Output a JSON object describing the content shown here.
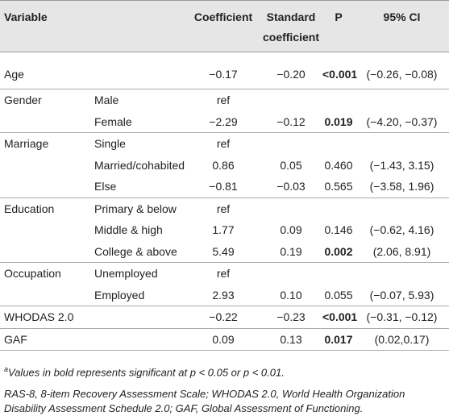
{
  "table": {
    "header": [
      "Variable",
      null,
      "Coefficient",
      "Standard coefficient",
      "P",
      "95% CI"
    ],
    "rows": [
      {
        "cells": [
          "Age",
          null,
          "−0.17",
          "−0.20",
          "<0.001",
          "(−0.26, −0.08)"
        ],
        "p_bold": true
      },
      {
        "cells": [
          "Gender",
          "Male",
          "ref",
          null,
          null,
          null
        ],
        "p_bold": false
      },
      {
        "cells": [
          null,
          "Female",
          "−2.29",
          "−0.12",
          "0.019",
          "(−4.20, −0.37)"
        ],
        "p_bold": true
      },
      {
        "cells": [
          "Marriage",
          "Single",
          "ref",
          null,
          null,
          null
        ],
        "p_bold": false
      },
      {
        "cells": [
          null,
          "Married/cohabited",
          "0.86",
          "0.05",
          "0.460",
          "(−1.43, 3.15)"
        ],
        "p_bold": false
      },
      {
        "cells": [
          null,
          "Else",
          "−0.81",
          "−0.03",
          "0.565",
          "(−3.58, 1.96)"
        ],
        "p_bold": false
      },
      {
        "cells": [
          "Education",
          "Primary & below",
          "ref",
          null,
          null,
          null
        ],
        "p_bold": false
      },
      {
        "cells": [
          null,
          "Middle & high",
          "1.77",
          "0.09",
          "0.146",
          "(−0.62, 4.16)"
        ],
        "p_bold": false
      },
      {
        "cells": [
          null,
          "College & above",
          "5.49",
          "0.19",
          "0.002",
          "(2.06, 8.91)"
        ],
        "p_bold": true
      },
      {
        "cells": [
          "Occupation",
          "Unemployed",
          "ref",
          null,
          null,
          null
        ],
        "p_bold": false
      },
      {
        "cells": [
          null,
          "Employed",
          "2.93",
          "0.10",
          "0.055",
          "(−0.07, 5.93)"
        ],
        "p_bold": false
      },
      {
        "cells": [
          "WHODAS 2.0",
          null,
          "−0.22",
          "−0.23",
          "<0.001",
          "(−0.31, −0.12)"
        ],
        "p_bold": true
      },
      {
        "cells": [
          "GAF",
          null,
          "0.09",
          "0.13",
          "0.017",
          "(0.02,0.17)"
        ],
        "p_bold": true
      }
    ]
  },
  "footnotes": {
    "marker": "a",
    "note": "Values in bold represents significant at p < 0.05 or p < 0.01.",
    "abbreviations": "RAS-8, 8-item Recovery Assessment Scale; WHODAS 2.0, World Health Organization Disability Assessment Schedule 2.0; GAF, Global Assessment of Functioning."
  }
}
